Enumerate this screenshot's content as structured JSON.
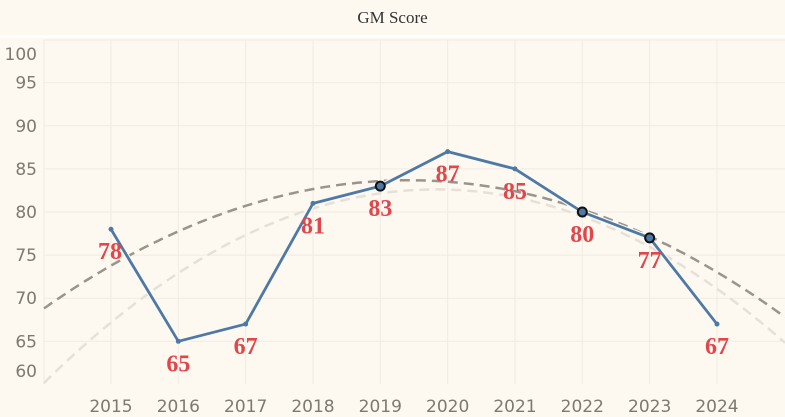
{
  "chart_data": {
    "type": "line",
    "title": "GM Score",
    "xlabel": "",
    "ylabel": "",
    "x": [
      2015,
      2016,
      2017,
      2018,
      2019,
      2020,
      2021,
      2022,
      2023,
      2024
    ],
    "series": [
      {
        "name": "GM Score",
        "values": [
          78,
          65,
          67,
          81,
          83,
          87,
          85,
          80,
          77,
          67
        ],
        "color": "#4e79a7"
      }
    ],
    "data_labels": [
      "78",
      "65",
      "67",
      "81",
      "83",
      "87",
      "85",
      "80",
      "77",
      "67"
    ],
    "highlighted_years": [
      2019,
      2022,
      2023
    ],
    "x_tick_labels": [
      "2015",
      "2016",
      "2017",
      "2018",
      "2019",
      "2020",
      "2021",
      "2022",
      "2023",
      "2024"
    ],
    "y_tick_labels": [
      "100",
      "95",
      "90",
      "85",
      "80",
      "75",
      "70",
      "65",
      "60"
    ],
    "y_ticks": [
      100,
      95,
      90,
      85,
      80,
      75,
      70,
      65,
      60
    ],
    "xlim": [
      2014,
      2025
    ],
    "ylim": [
      58,
      102
    ],
    "grid": true,
    "trend_lines": [
      {
        "name": "trend-dark",
        "type": "quadratic",
        "vertex_x": 2019.41,
        "vertex_y": 83.68,
        "a": -0.508,
        "color": "#99958e"
      },
      {
        "name": "trend-light",
        "type": "quadratic",
        "vertex_x": 2019.82,
        "vertex_y": 82.62,
        "a": -0.663,
        "color": "#e6e1d8"
      }
    ],
    "label_color": "#e0474c",
    "background": "#fdf8f0"
  }
}
